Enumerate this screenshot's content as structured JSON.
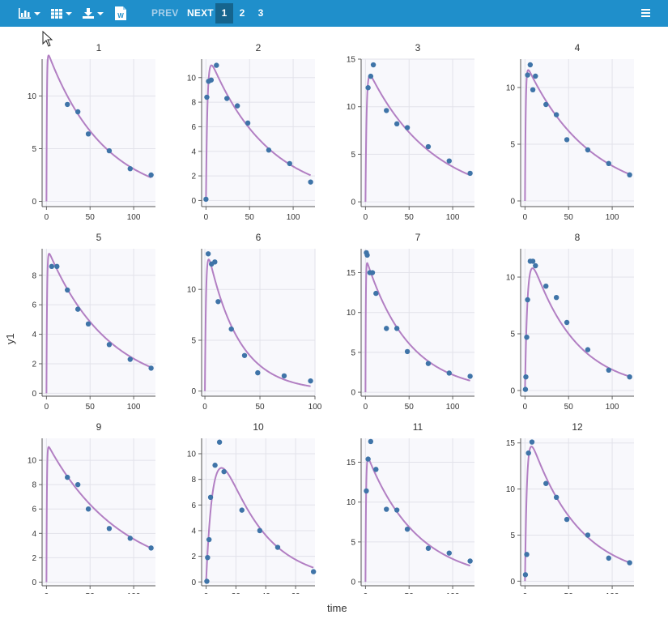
{
  "toolbar": {
    "icons": [
      "bar-chart-icon",
      "grid-layout-icon",
      "download-icon",
      "word-doc-icon"
    ],
    "word_icon_letter": "W",
    "prev_label": "PREV",
    "next_label": "NEXT",
    "pages": [
      "1",
      "2",
      "3"
    ],
    "active_page": "1",
    "menu_icon": "hamburger-menu-icon"
  },
  "colors": {
    "toolbar_bg": "#1f8fcb",
    "active_page_bg": "#15648d",
    "plot_bg": "#f8f8fc",
    "curve": "#b27fc3",
    "points": "#3f74a8"
  },
  "chart_data": {
    "type": "scatter",
    "xlabel": "time",
    "ylabel": "y1",
    "grid": true,
    "layout": "4x3 facet grid",
    "panels": [
      {
        "title": "1",
        "xlim": [
          -5,
          125
        ],
        "ylim": [
          -0.5,
          13.5
        ],
        "xticks": [
          0,
          50,
          100
        ],
        "yticks": [
          0,
          5,
          10
        ],
        "obs": [
          [
            24,
            9.2
          ],
          [
            36,
            8.5
          ],
          [
            48,
            6.4
          ],
          [
            72,
            4.8
          ],
          [
            96,
            3.1
          ],
          [
            120,
            2.5
          ]
        ],
        "model": {
          "A": 14.5,
          "ke": 0.0155,
          "ka": 2.0,
          "tmax": 120
        }
      },
      {
        "title": "2",
        "xlim": [
          -5,
          125
        ],
        "ylim": [
          -0.5,
          11.5
        ],
        "xticks": [
          0,
          50,
          100
        ],
        "yticks": [
          0,
          2,
          4,
          6,
          8,
          10
        ],
        "obs": [
          [
            0,
            0.1
          ],
          [
            1,
            8.4
          ],
          [
            3,
            9.7
          ],
          [
            6,
            9.8
          ],
          [
            12,
            11.0
          ],
          [
            24,
            8.3
          ],
          [
            36,
            7.7
          ],
          [
            48,
            6.3
          ],
          [
            72,
            4.1
          ],
          [
            96,
            3.0
          ],
          [
            120,
            1.5
          ]
        ],
        "model": {
          "A": 12.4,
          "ke": 0.015,
          "ka": 0.6,
          "tmax": 120
        }
      },
      {
        "title": "3",
        "xlim": [
          -5,
          125
        ],
        "ylim": [
          -0.5,
          15.0
        ],
        "xticks": [
          0,
          50,
          100
        ],
        "yticks": [
          0,
          5,
          10,
          15
        ],
        "obs": [
          [
            3,
            12.0
          ],
          [
            6,
            13.2
          ],
          [
            9,
            14.4
          ],
          [
            24,
            9.6
          ],
          [
            36,
            8.2
          ],
          [
            48,
            7.8
          ],
          [
            72,
            5.8
          ],
          [
            96,
            4.3
          ],
          [
            120,
            3.0
          ]
        ],
        "model": {
          "A": 14.5,
          "ke": 0.0137,
          "ka": 0.8,
          "tmax": 120
        }
      },
      {
        "title": "4",
        "xlim": [
          -5,
          125
        ],
        "ylim": [
          -0.5,
          12.5
        ],
        "xticks": [
          0,
          50,
          100
        ],
        "yticks": [
          0,
          5,
          10
        ],
        "obs": [
          [
            3,
            11.1
          ],
          [
            6,
            12.0
          ],
          [
            9,
            9.8
          ],
          [
            12,
            11.0
          ],
          [
            24,
            8.5
          ],
          [
            36,
            7.6
          ],
          [
            48,
            5.4
          ],
          [
            72,
            4.5
          ],
          [
            96,
            3.3
          ],
          [
            120,
            2.3
          ]
        ],
        "model": {
          "A": 12.3,
          "ke": 0.0138,
          "ka": 1.2,
          "tmax": 120
        }
      },
      {
        "title": "5",
        "xlim": [
          -5,
          125
        ],
        "ylim": [
          -0.2,
          9.8
        ],
        "xticks": [
          0,
          50,
          100
        ],
        "yticks": [
          0,
          2,
          4,
          6,
          8
        ],
        "obs": [
          [
            6,
            8.6
          ],
          [
            12,
            8.6
          ],
          [
            24,
            7.0
          ],
          [
            36,
            5.7
          ],
          [
            48,
            4.7
          ],
          [
            72,
            3.3
          ],
          [
            96,
            2.3
          ],
          [
            120,
            1.7
          ]
        ],
        "model": {
          "A": 10.0,
          "ke": 0.0145,
          "ka": 1.5,
          "tmax": 120
        }
      },
      {
        "title": "6",
        "xlim": [
          -3,
          100
        ],
        "ylim": [
          -0.5,
          14.0
        ],
        "xticks": [
          0,
          50,
          100
        ],
        "yticks": [
          0,
          5,
          10
        ],
        "obs": [
          [
            3,
            13.5
          ],
          [
            6,
            12.5
          ],
          [
            9,
            12.7
          ],
          [
            12,
            8.8
          ],
          [
            24,
            6.1
          ],
          [
            36,
            3.5
          ],
          [
            48,
            1.8
          ],
          [
            72,
            1.5
          ],
          [
            96,
            1.0
          ]
        ],
        "model": {
          "A": 15.2,
          "ke": 0.036,
          "ka": 1.0,
          "tmax": 96
        }
      },
      {
        "title": "7",
        "xlim": [
          -5,
          125
        ],
        "ylim": [
          -0.5,
          18.0
        ],
        "xticks": [
          0,
          50,
          100
        ],
        "yticks": [
          0,
          5,
          10,
          15
        ],
        "obs": [
          [
            1,
            17.5
          ],
          [
            2,
            17.2
          ],
          [
            5,
            15.0
          ],
          [
            8,
            15.0
          ],
          [
            12,
            12.4
          ],
          [
            24,
            8.0
          ],
          [
            36,
            8.0
          ],
          [
            48,
            5.1
          ],
          [
            72,
            3.6
          ],
          [
            96,
            2.4
          ],
          [
            120,
            2.0
          ]
        ],
        "model": {
          "A": 17.0,
          "ke": 0.0205,
          "ka": 2.5,
          "tmax": 120
        }
      },
      {
        "title": "8",
        "xlim": [
          -5,
          125
        ],
        "ylim": [
          -0.5,
          12.5
        ],
        "xticks": [
          0,
          50,
          100
        ],
        "yticks": [
          0,
          5,
          10
        ],
        "obs": [
          [
            0.5,
            0.1
          ],
          [
            1,
            1.2
          ],
          [
            2,
            4.7
          ],
          [
            3,
            8.0
          ],
          [
            6,
            11.4
          ],
          [
            9,
            11.4
          ],
          [
            12,
            11.0
          ],
          [
            24,
            9.2
          ],
          [
            36,
            8.2
          ],
          [
            48,
            6.0
          ],
          [
            72,
            3.6
          ],
          [
            96,
            1.8
          ],
          [
            120,
            1.2
          ]
        ],
        "model": {
          "A": 13.6,
          "ke": 0.02,
          "ka": 0.35,
          "tmax": 120
        }
      },
      {
        "title": "9",
        "xlim": [
          -5,
          125
        ],
        "ylim": [
          -0.3,
          11.8
        ],
        "xticks": [
          0,
          50,
          100
        ],
        "yticks": [
          0,
          2,
          4,
          6,
          8,
          10
        ],
        "obs": [
          [
            24,
            8.6
          ],
          [
            36,
            8.0
          ],
          [
            48,
            6.0
          ],
          [
            72,
            4.4
          ],
          [
            96,
            3.6
          ],
          [
            120,
            2.8
          ]
        ],
        "model": {
          "A": 11.5,
          "ke": 0.0118,
          "ka": 2.0,
          "tmax": 120
        }
      },
      {
        "title": "10",
        "xlim": [
          -3,
          73
        ],
        "ylim": [
          -0.3,
          11.2
        ],
        "xticks": [
          0,
          20,
          40,
          60
        ],
        "yticks": [
          0,
          2,
          4,
          6,
          8,
          10
        ],
        "obs": [
          [
            0.5,
            0.05
          ],
          [
            1,
            1.9
          ],
          [
            2,
            3.3
          ],
          [
            3,
            6.6
          ],
          [
            6,
            9.1
          ],
          [
            9,
            10.9
          ],
          [
            12,
            8.6
          ],
          [
            24,
            5.6
          ],
          [
            36,
            4.0
          ],
          [
            48,
            2.7
          ],
          [
            72,
            0.8
          ]
        ],
        "model": {
          "A": 16.0,
          "ke": 0.037,
          "ka": 0.2,
          "tmax": 72
        }
      },
      {
        "title": "11",
        "xlim": [
          -5,
          125
        ],
        "ylim": [
          -0.5,
          18.0
        ],
        "xticks": [
          0,
          50,
          100
        ],
        "yticks": [
          0,
          5,
          10,
          15
        ],
        "obs": [
          [
            1,
            11.4
          ],
          [
            3,
            15.4
          ],
          [
            6,
            17.6
          ],
          [
            12,
            14.1
          ],
          [
            24,
            9.1
          ],
          [
            36,
            9.0
          ],
          [
            48,
            6.6
          ],
          [
            72,
            4.2
          ],
          [
            96,
            3.6
          ],
          [
            120,
            2.6
          ]
        ],
        "model": {
          "A": 16.5,
          "ke": 0.0175,
          "ka": 1.5,
          "tmax": 120
        }
      },
      {
        "title": "12",
        "xlim": [
          -5,
          125
        ],
        "ylim": [
          -0.5,
          15.5
        ],
        "xticks": [
          0,
          50,
          100
        ],
        "yticks": [
          0,
          5,
          10,
          15
        ],
        "obs": [
          [
            0.5,
            0.7
          ],
          [
            2,
            2.9
          ],
          [
            4,
            13.9
          ],
          [
            8,
            15.1
          ],
          [
            24,
            10.6
          ],
          [
            36,
            9.1
          ],
          [
            48,
            6.7
          ],
          [
            72,
            5.0
          ],
          [
            96,
            2.5
          ],
          [
            120,
            2.0
          ]
        ],
        "model": {
          "A": 17.4,
          "ke": 0.018,
          "ka": 0.45,
          "tmax": 120
        }
      }
    ]
  }
}
